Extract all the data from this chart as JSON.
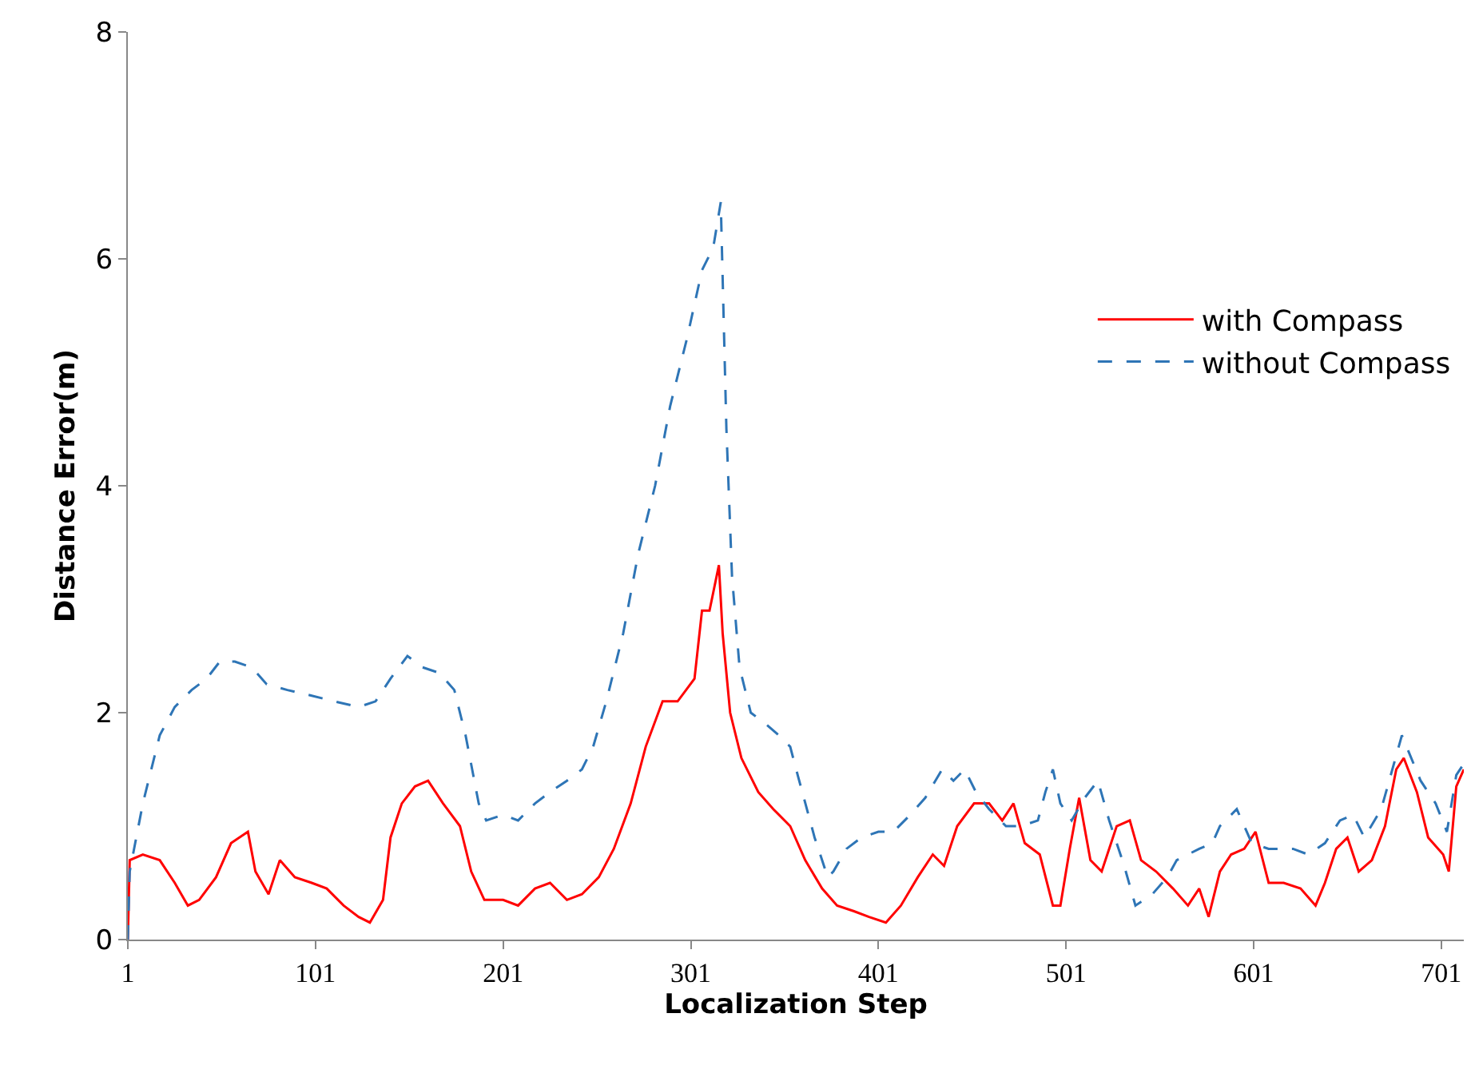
{
  "chart_data": {
    "type": "line",
    "xlabel": "Localization Step",
    "ylabel": "Distance Error(m)",
    "xlim": [
      1,
      713
    ],
    "xticks": [
      1,
      101,
      201,
      301,
      401,
      501,
      601,
      701
    ],
    "ylim": [
      0,
      8
    ],
    "yticks": [
      0,
      2,
      4,
      6,
      8
    ],
    "legend": "right",
    "series": [
      {
        "name": "with Compass",
        "color": "#ff0000",
        "line_style": "solid",
        "x": [
          1,
          2,
          9,
          18,
          26,
          33,
          39,
          48,
          56,
          65,
          69,
          76,
          82,
          90,
          99,
          107,
          116,
          124,
          130,
          137,
          141,
          147,
          154,
          161,
          169,
          178,
          184,
          191,
          201,
          209,
          218,
          226,
          235,
          243,
          252,
          260,
          269,
          277,
          286,
          294,
          303,
          307,
          311,
          316,
          318,
          322,
          328,
          337,
          345,
          354,
          362,
          371,
          379,
          388,
          396,
          405,
          413,
          422,
          430,
          436,
          443,
          452,
          460,
          467,
          473,
          479,
          487,
          494,
          498,
          503,
          508,
          514,
          520,
          528,
          535,
          541,
          549,
          558,
          566,
          572,
          577,
          583,
          589,
          596,
          602,
          609,
          617,
          626,
          634,
          639,
          645,
          651,
          657,
          664,
          671,
          677,
          681,
          688,
          694,
          702,
          705,
          709,
          713
        ],
        "values": [
          0,
          0.7,
          0.75,
          0.7,
          0.5,
          0.3,
          0.35,
          0.55,
          0.85,
          0.95,
          0.6,
          0.4,
          0.7,
          0.55,
          0.5,
          0.45,
          0.3,
          0.2,
          0.15,
          0.35,
          0.9,
          1.2,
          1.35,
          1.4,
          1.2,
          1.0,
          0.6,
          0.35,
          0.35,
          0.3,
          0.45,
          0.5,
          0.35,
          0.4,
          0.55,
          0.8,
          1.2,
          1.7,
          2.1,
          2.1,
          2.3,
          2.9,
          2.9,
          3.3,
          2.7,
          2.0,
          1.6,
          1.3,
          1.15,
          1.0,
          0.7,
          0.45,
          0.3,
          0.25,
          0.2,
          0.15,
          0.3,
          0.55,
          0.75,
          0.65,
          1.0,
          1.2,
          1.2,
          1.05,
          1.2,
          0.85,
          0.75,
          0.3,
          0.3,
          0.8,
          1.25,
          0.7,
          0.6,
          1.0,
          1.05,
          0.7,
          0.6,
          0.45,
          0.3,
          0.45,
          0.2,
          0.6,
          0.75,
          0.8,
          0.95,
          0.5,
          0.5,
          0.45,
          0.3,
          0.5,
          0.8,
          0.9,
          0.6,
          0.7,
          1.0,
          1.5,
          1.6,
          1.3,
          0.9,
          0.75,
          0.6,
          1.35,
          1.5
        ]
      },
      {
        "name": "without Compass",
        "color": "#2e75b6",
        "line_style": "dashed",
        "x": [
          1,
          2,
          9,
          18,
          26,
          35,
          43,
          50,
          58,
          67,
          75,
          86,
          99,
          111,
          124,
          133,
          141,
          150,
          158,
          167,
          175,
          181,
          188,
          192,
          201,
          209,
          218,
          226,
          235,
          243,
          249,
          256,
          265,
          273,
          282,
          290,
          299,
          307,
          313,
          317,
          320,
          323,
          327,
          333,
          341,
          348,
          354,
          358,
          367,
          374,
          377,
          384,
          392,
          401,
          409,
          418,
          426,
          435,
          441,
          447,
          453,
          460,
          469,
          477,
          486,
          490,
          494,
          498,
          504,
          511,
          518,
          524,
          532,
          538,
          547,
          555,
          560,
          566,
          572,
          579,
          583,
          592,
          600,
          609,
          622,
          630,
          639,
          647,
          654,
          660,
          669,
          680,
          690,
          698,
          704,
          709,
          713
        ],
        "values": [
          0,
          0.6,
          1.2,
          1.8,
          2.05,
          2.2,
          2.3,
          2.45,
          2.45,
          2.4,
          2.25,
          2.2,
          2.15,
          2.1,
          2.05,
          2.1,
          2.3,
          2.5,
          2.4,
          2.35,
          2.2,
          1.8,
          1.2,
          1.05,
          1.1,
          1.05,
          1.2,
          1.3,
          1.4,
          1.5,
          1.7,
          2.1,
          2.7,
          3.4,
          4.0,
          4.7,
          5.3,
          5.9,
          6.1,
          6.5,
          4.5,
          3.2,
          2.4,
          2.0,
          1.9,
          1.8,
          1.7,
          1.45,
          0.9,
          0.55,
          0.6,
          0.8,
          0.9,
          0.95,
          0.95,
          1.1,
          1.25,
          1.5,
          1.4,
          1.5,
          1.3,
          1.15,
          1.0,
          1.0,
          1.05,
          1.3,
          1.5,
          1.2,
          1.05,
          1.25,
          1.4,
          1.05,
          0.65,
          0.3,
          0.4,
          0.55,
          0.7,
          0.75,
          0.8,
          0.85,
          1.0,
          1.15,
          0.85,
          0.8,
          0.8,
          0.75,
          0.85,
          1.05,
          1.1,
          0.9,
          1.15,
          1.8,
          1.4,
          1.2,
          0.95,
          1.45,
          1.55
        ]
      }
    ]
  }
}
